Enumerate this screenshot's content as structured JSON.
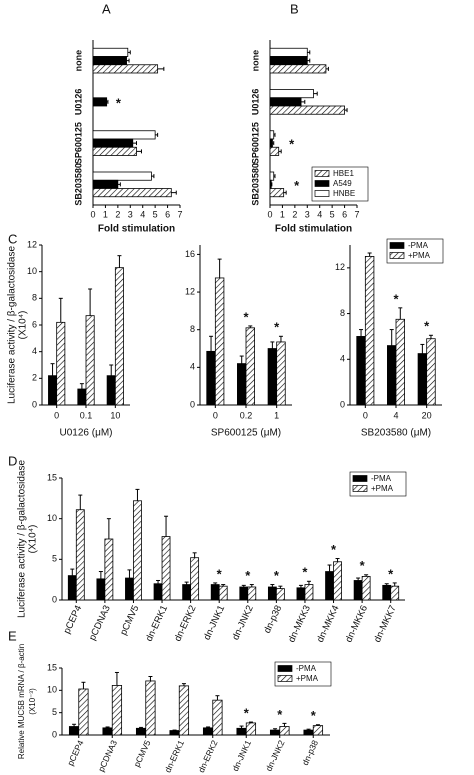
{
  "chart_data": [
    {
      "type": "hbar",
      "panel": "A",
      "xlabel": "Fold stimulation",
      "categories": [
        "none",
        "U0126",
        "SP600125",
        "SB203580"
      ],
      "series": [
        {
          "color": "#ffffff",
          "values": [
            2.8,
            0,
            5.0,
            4.7
          ],
          "errors": [
            0.2,
            0,
            0.2,
            0.2
          ]
        },
        {
          "color": "#000000",
          "values": [
            2.7,
            1.1,
            3.2,
            2.0
          ],
          "errors": [
            0.2,
            0.1,
            0.3,
            0.2
          ]
        },
        {
          "color": "#ffffff",
          "hatched": true,
          "values": [
            5.2,
            0,
            3.5,
            6.3
          ],
          "errors": [
            0.5,
            0,
            0.4,
            0.4
          ]
        }
      ],
      "xlim": [
        0,
        7
      ],
      "xticks": [
        0,
        1,
        2,
        3,
        4,
        5,
        6,
        7
      ],
      "annotations": [
        {
          "text": "*",
          "category": "U0126"
        }
      ]
    },
    {
      "type": "hbar",
      "panel": "B",
      "xlabel": "Fold stimulation",
      "categories": [
        "none",
        "U0126",
        "SP600125",
        "SB203580"
      ],
      "series": [
        {
          "name": "HNBE",
          "color": "#ffffff",
          "values": [
            3.0,
            3.5,
            0.3,
            0.3
          ],
          "errors": [
            0.2,
            0.3,
            0.1,
            0.1
          ]
        },
        {
          "name": "A549",
          "color": "#000000",
          "values": [
            3.0,
            2.5,
            0.2,
            0.1
          ],
          "errors": [
            0.2,
            0.3,
            0.1,
            0.05
          ]
        },
        {
          "name": "HBE1",
          "color": "#ffffff",
          "hatched": true,
          "values": [
            4.5,
            6.0,
            0.7,
            1.1
          ],
          "errors": [
            0.2,
            0.2,
            0.2,
            0.2
          ]
        }
      ],
      "xlim": [
        0,
        7
      ],
      "xticks": [
        0,
        1,
        2,
        3,
        4,
        5,
        6,
        7
      ],
      "legend": "lower right",
      "annotations": [
        {
          "text": "*",
          "category": "SP600125"
        },
        {
          "text": "*",
          "category": "SB203580"
        }
      ]
    },
    {
      "type": "bar",
      "panel": "C",
      "ylabel": [
        "Luciferase activity / β-galactosidase",
        "(X10⁴)"
      ],
      "xlabel": "U0126 (μM)",
      "categories": [
        "0",
        "0.1",
        "10"
      ],
      "series": [
        {
          "color": "#000000",
          "values": [
            2.2,
            1.2,
            2.2
          ],
          "errors": [
            0.9,
            0.4,
            0.8
          ]
        },
        {
          "color": "#ffffff",
          "hatched": true,
          "values": [
            6.2,
            6.7,
            10.3
          ],
          "errors": [
            1.8,
            2.0,
            0.9
          ]
        }
      ],
      "ylim": [
        0,
        12
      ],
      "yticks": [
        0,
        2,
        4,
        6,
        8,
        10,
        12
      ]
    },
    {
      "type": "bar",
      "xlabel": "SP600125 (μM)",
      "categories": [
        "0",
        "0.2",
        "1"
      ],
      "series": [
        {
          "color": "#000000",
          "values": [
            5.7,
            4.4,
            6.0
          ],
          "errors": [
            1.6,
            0.8,
            0.7
          ]
        },
        {
          "color": "#ffffff",
          "hatched": true,
          "values": [
            13.5,
            8.2,
            6.7
          ],
          "errors": [
            2.0,
            0.2,
            0.6
          ]
        }
      ],
      "ylim": [
        0,
        17
      ],
      "yticks": [
        0,
        4,
        8,
        12,
        16
      ],
      "annotations": [
        {
          "text": "*",
          "category": "0.2"
        },
        {
          "text": "*",
          "category": "1"
        }
      ]
    },
    {
      "type": "bar",
      "xlabel": "SB203580 (μM)",
      "categories": [
        "0",
        "4",
        "20"
      ],
      "series": [
        {
          "name": "-PMA",
          "color": "#000000",
          "values": [
            6.0,
            5.2,
            4.5
          ],
          "errors": [
            0.6,
            1.4,
            0.8
          ]
        },
        {
          "name": "+PMA",
          "color": "#ffffff",
          "hatched": true,
          "values": [
            13.0,
            7.5,
            5.8
          ],
          "errors": [
            0.3,
            1.0,
            0.3
          ]
        }
      ],
      "ylim": [
        0,
        14
      ],
      "yticks": [
        0,
        4,
        8,
        12
      ],
      "legend": "upper right",
      "annotations": [
        {
          "text": "*",
          "category": "4"
        },
        {
          "text": "*",
          "category": "20"
        }
      ]
    },
    {
      "type": "bar",
      "panel": "D",
      "ylabel": [
        "Luciferase activity / β-galactosidase",
        "(X10⁴)"
      ],
      "categories": [
        "pCEP4",
        "pCDNA3",
        "pCMV5",
        "dn-ERK1",
        "dn-ERK2",
        "dn-JNK1",
        "dn-JNK2",
        "dn-p38",
        "dn-MKK3",
        "dn-MKK4",
        "dn-MKK6",
        "dn-MKK7"
      ],
      "series": [
        {
          "name": "-PMA",
          "color": "#000000",
          "values": [
            3.0,
            2.6,
            2.7,
            2.0,
            1.9,
            1.9,
            1.6,
            1.6,
            1.5,
            3.5,
            2.4,
            1.8
          ],
          "errors": [
            0.8,
            0.9,
            1.0,
            0.4,
            0.3,
            0.2,
            0.2,
            0.3,
            0.3,
            0.8,
            0.3,
            0.2
          ]
        },
        {
          "name": "+PMA",
          "color": "#ffffff",
          "hatched": true,
          "values": [
            11.1,
            7.5,
            12.2,
            7.8,
            5.2,
            1.7,
            1.6,
            1.4,
            1.9,
            4.7,
            2.9,
            1.7
          ],
          "errors": [
            1.8,
            2.5,
            1.4,
            2.5,
            0.6,
            0.2,
            0.3,
            0.3,
            0.4,
            0.4,
            0.2,
            0.4
          ]
        }
      ],
      "ylim": [
        0,
        15
      ],
      "yticks": [
        0,
        5,
        10,
        15
      ],
      "legend": "upper right",
      "annotations": [
        {
          "text": "*",
          "category": "dn-JNK1"
        },
        {
          "text": "*",
          "category": "dn-JNK2"
        },
        {
          "text": "*",
          "category": "dn-p38"
        },
        {
          "text": "*",
          "category": "dn-MKK3"
        },
        {
          "text": "*",
          "category": "dn-MKK4"
        },
        {
          "text": "*",
          "category": "dn-MKK6"
        },
        {
          "text": "*",
          "category": "dn-MKK7"
        }
      ]
    },
    {
      "type": "bar",
      "panel": "E",
      "ylabel": [
        "Relative MUC5B mRNA / β-actin",
        "(X10⁻³)"
      ],
      "categories": [
        "pCEP4",
        "pCDNA3",
        "pCMV5",
        "dn-ERK1",
        "dn-ERK2",
        "dn-JNK1",
        "dn-JNK2",
        "dn-p38"
      ],
      "series": [
        {
          "name": "-PMA",
          "color": "#000000",
          "values": [
            1.9,
            1.6,
            1.5,
            1.0,
            1.6,
            1.5,
            1.1,
            1.1
          ],
          "errors": [
            0.5,
            0.2,
            0.2,
            0.1,
            0.2,
            0.5,
            0.3,
            0.2
          ]
        },
        {
          "name": "+PMA",
          "color": "#ffffff",
          "hatched": true,
          "values": [
            10.3,
            11.1,
            12.1,
            11.0,
            7.8,
            2.7,
            1.9,
            2.1
          ],
          "errors": [
            1.5,
            2.9,
            1.0,
            0.5,
            1.0,
            0.2,
            0.7,
            0.2
          ]
        }
      ],
      "ylim": [
        0,
        15
      ],
      "yticks": [
        0,
        5,
        10,
        15
      ],
      "legend": "upper right",
      "annotations": [
        {
          "text": "*",
          "category": "dn-JNK1"
        },
        {
          "text": "*",
          "category": "dn-JNK2"
        },
        {
          "text": "*",
          "category": "dn-p38"
        }
      ]
    }
  ]
}
